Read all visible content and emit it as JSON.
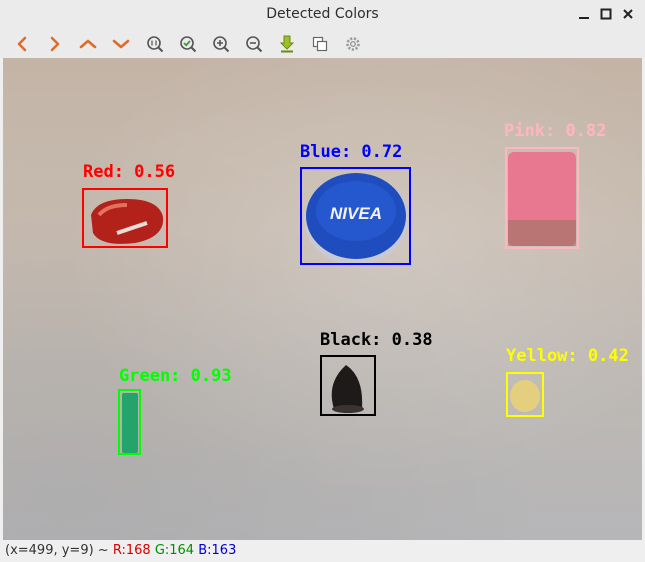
{
  "window": {
    "title": "Detected Colors"
  },
  "toolbar": {
    "buttons": [
      {
        "name": "pan-left",
        "icon": "chevron-left-icon"
      },
      {
        "name": "pan-right",
        "icon": "chevron-right-icon"
      },
      {
        "name": "pan-up",
        "icon": "chevron-up-icon"
      },
      {
        "name": "pan-down",
        "icon": "chevron-down-icon"
      },
      {
        "name": "zoom-original",
        "icon": "zoom-original-icon"
      },
      {
        "name": "zoom-fit",
        "icon": "zoom-fit-icon"
      },
      {
        "name": "zoom-in",
        "icon": "zoom-in-icon"
      },
      {
        "name": "zoom-out",
        "icon": "zoom-out-icon"
      },
      {
        "name": "save-image",
        "icon": "download-icon"
      },
      {
        "name": "copy-image",
        "icon": "copy-icon"
      },
      {
        "name": "properties",
        "icon": "gear-icon"
      }
    ]
  },
  "detections": [
    {
      "id": "red",
      "label": "Red: 0.56",
      "color": "#ff0000"
    },
    {
      "id": "blue",
      "label": "Blue: 0.72",
      "color": "#0000ff"
    },
    {
      "id": "pink",
      "label": "Pink: 0.82",
      "color": "#ffb6c1"
    },
    {
      "id": "black",
      "label": "Black: 0.38",
      "color": "#000000"
    },
    {
      "id": "green",
      "label": "Green: 0.93",
      "color": "#00ff00"
    },
    {
      "id": "yellow",
      "label": "Yellow: 0.42",
      "color": "#ffff00"
    }
  ],
  "status": {
    "coords": "(x=499, y=9) ~",
    "r": "R:168",
    "g": "G:164",
    "b": "B:163",
    "r_color": "#d40000",
    "g_color": "#008f00",
    "b_color": "#0000d4"
  }
}
